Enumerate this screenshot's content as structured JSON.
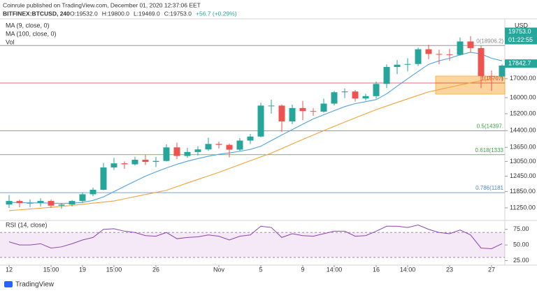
{
  "chart_data": {
    "type": "candlestick",
    "source": "Coinrule published on TradingView.com, December 01, 2020 12:37:06 EET",
    "symbol": "BITFINEX:BTCUSD, 240",
    "quote": [
      "O:19532.0",
      "H:19800.0",
      "L:19469.0",
      "C:19753.0",
      "+56.7 (+0.29%)"
    ],
    "volume_label": "Vol",
    "currency": "USD",
    "footer": "TradingView",
    "categories": [
      "12",
      null,
      null,
      null,
      "15:00",
      null,
      null,
      "19",
      null,
      null,
      "15:00",
      null,
      null,
      null,
      "26",
      null,
      null,
      null,
      null,
      null,
      "Nov",
      null,
      null,
      null,
      "5",
      null,
      null,
      null,
      "9",
      null,
      null,
      "14:00",
      null,
      null,
      null,
      "16",
      null,
      null,
      "14:00",
      null,
      null,
      null,
      "23",
      null,
      null,
      null,
      "27",
      null
    ],
    "open": [
      11370,
      11500,
      11420,
      11430,
      11500,
      11330,
      11370,
      11500,
      11750,
      11920,
      12800,
      12970,
      12930,
      13120,
      13030,
      13070,
      13650,
      13280,
      13450,
      13560,
      13800,
      13760,
      13550,
      13950,
      14130,
      15600,
      15600,
      14830,
      15480,
      15330,
      15300,
      15700,
      16280,
      16320,
      15960,
      16080,
      16720,
      17650,
      17780,
      17820,
      18680,
      18400,
      18380,
      18350,
      19150,
      18750,
      17150,
      17120
    ],
    "high": [
      11720,
      11550,
      11560,
      11600,
      11550,
      11420,
      11530,
      11820,
      12000,
      12990,
      13200,
      13050,
      13250,
      13330,
      13240,
      13780,
      13860,
      13630,
      13700,
      14080,
      13900,
      13820,
      14060,
      14250,
      15750,
      15900,
      15660,
      15650,
      15840,
      15470,
      15950,
      16350,
      16480,
      16400,
      16200,
      16850,
      17800,
      18050,
      18150,
      18780,
      18950,
      18650,
      18700,
      19400,
      19480,
      18900,
      17450,
      17800
    ],
    "low": [
      11250,
      11270,
      11280,
      11300,
      11250,
      11220,
      11300,
      11420,
      11680,
      11900,
      12700,
      12750,
      12880,
      12900,
      12820,
      13050,
      13150,
      13200,
      13300,
      13500,
      13600,
      13220,
      13500,
      13800,
      14100,
      15200,
      14350,
      14700,
      14900,
      15100,
      15250,
      15600,
      15980,
      15800,
      15850,
      15950,
      16500,
      17250,
      17400,
      17700,
      18100,
      17800,
      18000,
      18300,
      18500,
      16500,
      16350,
      16900
    ],
    "close": [
      11500,
      11420,
      11430,
      11500,
      11330,
      11370,
      11500,
      11750,
      11920,
      12800,
      12970,
      12930,
      13120,
      13030,
      13070,
      13650,
      13280,
      13450,
      13560,
      13800,
      13760,
      13550,
      13950,
      14130,
      15600,
      15600,
      14830,
      15480,
      15330,
      15300,
      15700,
      16280,
      16320,
      15960,
      16080,
      16720,
      17650,
      17780,
      17820,
      18680,
      18400,
      18380,
      18350,
      19150,
      18750,
      17150,
      17120,
      17730
    ],
    "up_color": "#26a69a",
    "down_color": "#ef5350",
    "series": [
      {
        "name": "MA (9, close, 0)",
        "color": "#4fa3e0",
        "values": [
          11450,
          11440,
          11430,
          11430,
          11420,
          11410,
          11420,
          11450,
          11520,
          11650,
          11850,
          12050,
          12250,
          12450,
          12620,
          12780,
          12930,
          13060,
          13170,
          13270,
          13350,
          13410,
          13480,
          13560,
          13700,
          13950,
          14200,
          14450,
          14700,
          14950,
          15150,
          15350,
          15550,
          15700,
          15800,
          15900,
          16200,
          16600,
          17000,
          17400,
          17800,
          18000,
          18150,
          18350,
          18500,
          18400,
          18150,
          18000
        ]
      },
      {
        "name": "MA (100, close, 0)",
        "color": "#f3a33a",
        "values": [
          11150,
          11180,
          11210,
          11240,
          11270,
          11300,
          11340,
          11380,
          11420,
          11460,
          11500,
          11580,
          11660,
          11740,
          11820,
          11900,
          12040,
          12180,
          12320,
          12460,
          12600,
          12760,
          12920,
          13080,
          13240,
          13400,
          13600,
          13800,
          14000,
          14200,
          14400,
          14600,
          14800,
          15000,
          15200,
          15400,
          15580,
          15760,
          15940,
          16120,
          16300,
          16420,
          16540,
          16660,
          16780,
          16900,
          17000,
          17100
        ]
      }
    ],
    "ylim": [
      10830,
      20450
    ],
    "log_scale": true,
    "yticks": [
      {
        "value": 11250,
        "label": "11250.00"
      },
      {
        "value": 11850,
        "label": "11850.00"
      },
      {
        "value": 12450,
        "label": "12450.00"
      },
      {
        "value": 13050,
        "label": "13050.00"
      },
      {
        "value": 13650,
        "label": "13650.00"
      },
      {
        "value": 14400,
        "label": "14400.00"
      },
      {
        "value": 15200,
        "label": "15200.00"
      },
      {
        "value": 16000,
        "label": "16000.00"
      },
      {
        "value": 17000,
        "label": "17000.00"
      }
    ],
    "fib_levels": [
      {
        "value": 18906.2,
        "label": "0(18906.2)",
        "color": "#888888"
      },
      {
        "value": 16767,
        "label": "1(16767)",
        "color": "#e53935"
      },
      {
        "value": 14397,
        "label": "0.5(14397.",
        "color": "#43a047"
      },
      {
        "value": 13333,
        "label": "0.618(1333",
        "color": "#43a047"
      },
      {
        "value": 11811,
        "label": "0.786(1181",
        "color": "#4f86c6"
      }
    ],
    "price_tags": [
      {
        "value": 19753,
        "label": "19753.0",
        "color": "#26a69a"
      },
      {
        "value": 17842.7,
        "label": "17842.7",
        "color": "#26a69a"
      }
    ],
    "countdown": "01:22:55",
    "rsi": {
      "title": "RSI (14, close)",
      "color": "#8e44ad",
      "values": [
        55,
        50,
        50,
        52,
        45,
        47,
        52,
        58,
        62,
        75,
        76,
        72,
        70,
        65,
        64,
        70,
        60,
        62,
        63,
        66,
        64,
        58,
        64,
        66,
        80,
        78,
        62,
        68,
        65,
        64,
        68,
        72,
        72,
        64,
        65,
        72,
        80,
        80,
        78,
        82,
        75,
        70,
        68,
        74,
        66,
        45,
        44,
        52
      ],
      "ylim": [
        20,
        87
      ],
      "yticks": [
        {
          "value": 75,
          "label": "75.00"
        },
        {
          "value": 50,
          "label": "50.00"
        },
        {
          "value": 25,
          "label": "25.00"
        }
      ],
      "band": [
        30,
        70
      ]
    }
  }
}
